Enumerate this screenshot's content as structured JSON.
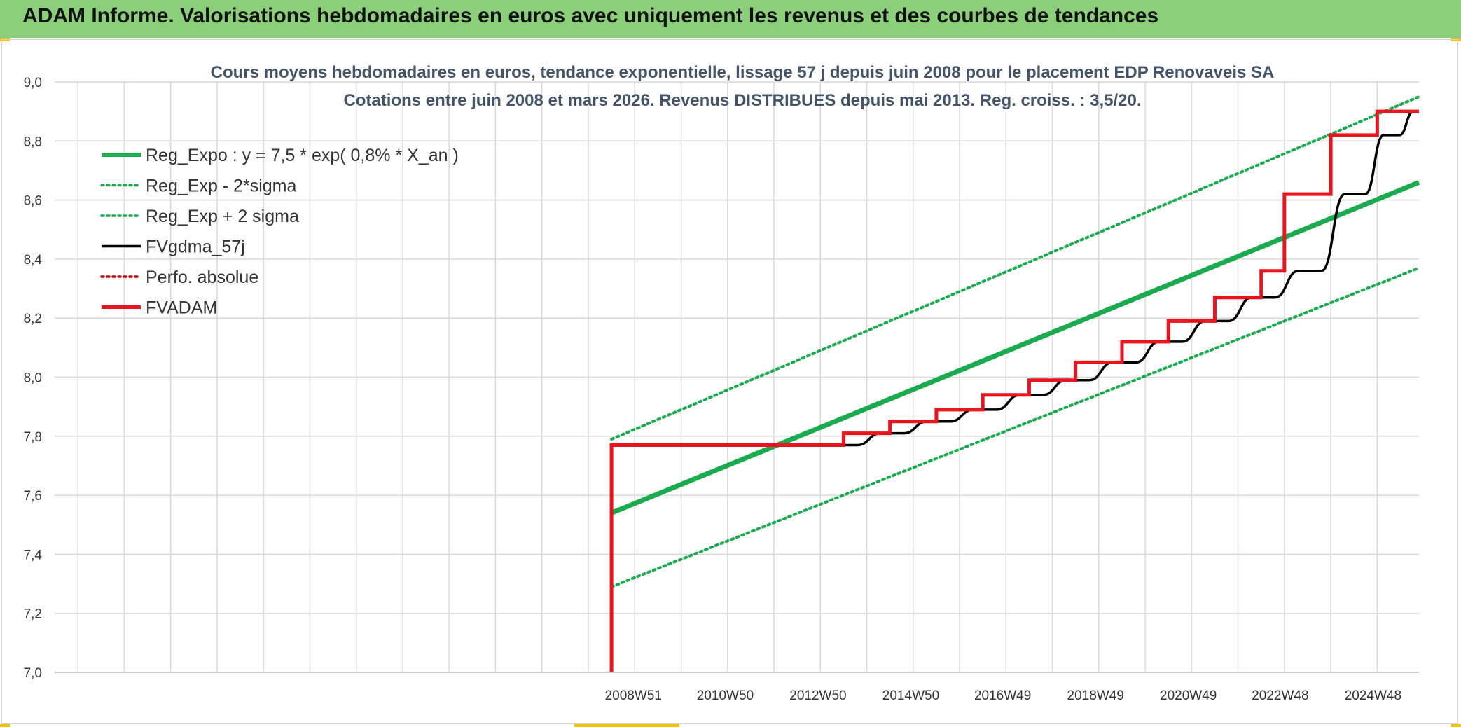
{
  "banner": {
    "title": "ADAM Informe. Valorisations hebdomadaires en euros avec uniquement les revenus et des courbes de tendances"
  },
  "colors": {
    "banner": "#8ccf7a",
    "corner_accent": "#f2c200",
    "reg_green": "#1aab4f",
    "fvgdma_black": "#000000",
    "fvadam_red": "#e8141e",
    "perfo_red": "#c00000",
    "grid": "#d9d9d9"
  },
  "chart_data": {
    "type": "line",
    "title_lines": [
      "Cours moyens hebdomadaires en euros, tendance exponentielle, lissage 57 j depuis juin 2008 pour le placement EDP Renovaveis SA",
      "Cotations entre juin 2008 et mars 2026. Revenus DISTRIBUES depuis mai 2013. Reg. croiss. : 3,5/20."
    ],
    "xlabel": "",
    "ylabel": "",
    "ylim": [
      7.0,
      9.0
    ],
    "y_ticks": [
      "7,0",
      "7,2",
      "7,4",
      "7,6",
      "7,8",
      "8,0",
      "8,2",
      "8,4",
      "8,6",
      "8,8",
      "9,0"
    ],
    "x_range_years": [
      1996.5,
      2025.9
    ],
    "x_ticks": [
      {
        "label": "2008W51",
        "year": 2008.97
      },
      {
        "label": "2010W50",
        "year": 2010.95
      },
      {
        "label": "2012W50",
        "year": 2012.95
      },
      {
        "label": "2014W50",
        "year": 2014.95
      },
      {
        "label": "2016W49",
        "year": 2016.93
      },
      {
        "label": "2018W49",
        "year": 2018.93
      },
      {
        "label": "2020W49",
        "year": 2020.93
      },
      {
        "label": "2022W48",
        "year": 2022.91
      },
      {
        "label": "2024W48",
        "year": 2024.91
      }
    ],
    "grid": true,
    "legend_position": "top-left",
    "series": [
      {
        "name": "Reg_Expo : y = 7,5 * exp( 0,8% *  X_an )",
        "style": "solid-thick",
        "color": "#1aab4f",
        "points": [
          [
            2008.5,
            7.54
          ],
          [
            2025.9,
            8.66
          ]
        ]
      },
      {
        "name": "Reg_Exp - 2*sigma",
        "style": "dotted",
        "color": "#1aab4f",
        "points": [
          [
            2008.5,
            7.29
          ],
          [
            2025.9,
            8.37
          ]
        ]
      },
      {
        "name": "Reg_Exp + 2 sigma",
        "style": "dotted",
        "color": "#1aab4f",
        "points": [
          [
            2008.5,
            7.79
          ],
          [
            2025.9,
            8.95
          ]
        ]
      },
      {
        "name": "FVgdma_57j",
        "style": "smooth-steps",
        "color": "#000000",
        "points": [
          [
            2008.5,
            7.77
          ],
          [
            2013.5,
            7.77
          ],
          [
            2014.5,
            7.81
          ],
          [
            2015.5,
            7.85
          ],
          [
            2016.5,
            7.89
          ],
          [
            2017.5,
            7.94
          ],
          [
            2018.5,
            7.99
          ],
          [
            2019.5,
            8.05
          ],
          [
            2020.5,
            8.12
          ],
          [
            2021.5,
            8.19
          ],
          [
            2022.5,
            8.27
          ],
          [
            2023.5,
            8.36
          ],
          [
            2024.5,
            8.62
          ],
          [
            2025.3,
            8.82
          ],
          [
            2025.9,
            8.9
          ]
        ]
      },
      {
        "name": "Perfo. absolue",
        "style": "dotted",
        "color": "#c00000",
        "points": []
      },
      {
        "name": "FVADAM",
        "style": "step",
        "color": "#e8141e",
        "points": [
          [
            2008.5,
            7.0
          ],
          [
            2008.5,
            7.77
          ],
          [
            2013.5,
            7.77
          ],
          [
            2013.5,
            7.81
          ],
          [
            2014.5,
            7.81
          ],
          [
            2014.5,
            7.85
          ],
          [
            2015.5,
            7.85
          ],
          [
            2015.5,
            7.89
          ],
          [
            2016.5,
            7.89
          ],
          [
            2016.5,
            7.94
          ],
          [
            2017.5,
            7.94
          ],
          [
            2017.5,
            7.99
          ],
          [
            2018.5,
            7.99
          ],
          [
            2018.5,
            8.05
          ],
          [
            2019.5,
            8.05
          ],
          [
            2019.5,
            8.12
          ],
          [
            2020.5,
            8.12
          ],
          [
            2020.5,
            8.19
          ],
          [
            2021.5,
            8.19
          ],
          [
            2021.5,
            8.27
          ],
          [
            2022.5,
            8.27
          ],
          [
            2022.5,
            8.36
          ],
          [
            2023.0,
            8.36
          ],
          [
            2023.0,
            8.62
          ],
          [
            2024.0,
            8.62
          ],
          [
            2024.0,
            8.82
          ],
          [
            2025.0,
            8.82
          ],
          [
            2025.0,
            8.9
          ],
          [
            2025.9,
            8.9
          ]
        ]
      }
    ]
  }
}
